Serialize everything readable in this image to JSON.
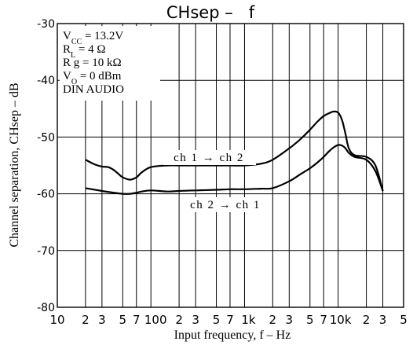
{
  "chart_data": {
    "type": "line",
    "title": "CHsep –   f",
    "xlabel": "Input frequency, f – Hz",
    "ylabel": "Channel separation, CHsep – dB",
    "x_scale": "log",
    "xlim": [
      10,
      50000
    ],
    "ylim": [
      -80,
      -30
    ],
    "grid": true,
    "x_ticks": [
      {
        "value": 10,
        "label": "10"
      },
      {
        "value": 20,
        "label": "2"
      },
      {
        "value": 30,
        "label": "3"
      },
      {
        "value": 50,
        "label": "5"
      },
      {
        "value": 70,
        "label": "7"
      },
      {
        "value": 100,
        "label": "100"
      },
      {
        "value": 200,
        "label": "2"
      },
      {
        "value": 300,
        "label": "3"
      },
      {
        "value": 500,
        "label": "5"
      },
      {
        "value": 700,
        "label": "7"
      },
      {
        "value": 1000,
        "label": "1k"
      },
      {
        "value": 2000,
        "label": "2"
      },
      {
        "value": 3000,
        "label": "3"
      },
      {
        "value": 5000,
        "label": "5"
      },
      {
        "value": 7000,
        "label": "7"
      },
      {
        "value": 10000,
        "label": "10k"
      },
      {
        "value": 20000,
        "label": "2"
      },
      {
        "value": 30000,
        "label": "3"
      },
      {
        "value": 50000,
        "label": "5"
      }
    ],
    "y_ticks": [
      {
        "value": -30,
        "label": "-30"
      },
      {
        "value": -40,
        "label": "-40"
      },
      {
        "value": -50,
        "label": "-50"
      },
      {
        "value": -60,
        "label": "-60"
      },
      {
        "value": -70,
        "label": "-70"
      },
      {
        "value": -80,
        "label": "-80"
      }
    ],
    "conditions": [
      "V<sub>CC</sub> = 13.2V",
      "R<sub>L</sub> = 4 Ω",
      "R g = 10 kΩ",
      "V<sub>O</sub> = 0 dBm",
      "DIN AUDIO"
    ],
    "series": [
      {
        "name": "ch 1 → ch 2",
        "x": [
          20,
          25,
          30,
          35,
          40,
          45,
          50,
          60,
          70,
          80,
          100,
          150,
          200,
          300,
          500,
          700,
          1000,
          1500,
          2000,
          3000,
          4000,
          5000,
          6000,
          7000,
          8000,
          9000,
          10000,
          11000,
          12000,
          13000,
          15000,
          20000,
          25000,
          30000
        ],
        "y": [
          -54,
          -54.8,
          -55.2,
          -55.3,
          -55.8,
          -56.5,
          -57.1,
          -57.5,
          -57.1,
          -56.2,
          -55.3,
          -55.0,
          -55.0,
          -55.0,
          -55.0,
          -55.0,
          -55.0,
          -54.7,
          -54.0,
          -52.0,
          -50.3,
          -48.7,
          -47.3,
          -46.3,
          -45.8,
          -45.5,
          -45.7,
          -47.0,
          -49.5,
          -52.0,
          -53.2,
          -53.5,
          -55.0,
          -59.5
        ]
      },
      {
        "name": "ch 2 → ch 1",
        "x": [
          20,
          30,
          40,
          50,
          60,
          70,
          80,
          100,
          150,
          200,
          300,
          500,
          700,
          1000,
          1500,
          2000,
          3000,
          4000,
          5000,
          6000,
          7000,
          8000,
          9000,
          10000,
          11000,
          12000,
          13000,
          15000,
          20000,
          25000,
          30000
        ],
        "y": [
          -59,
          -59.5,
          -59.8,
          -60,
          -60,
          -59.8,
          -59.6,
          -59.4,
          -59.6,
          -59.5,
          -59.4,
          -59.3,
          -59.2,
          -59.2,
          -59.1,
          -59.0,
          -57.8,
          -56.5,
          -55.5,
          -54.5,
          -53.5,
          -52.5,
          -51.8,
          -51.4,
          -51.5,
          -52.0,
          -52.8,
          -53.5,
          -54.0,
          -56.0,
          -59.5
        ]
      }
    ]
  }
}
